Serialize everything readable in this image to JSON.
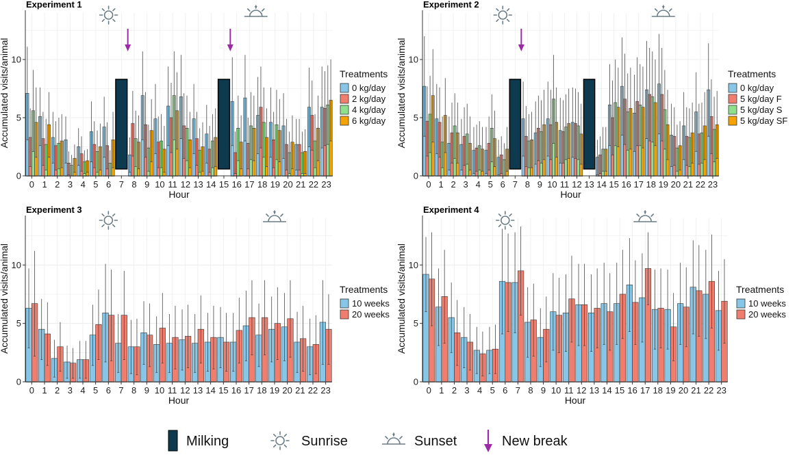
{
  "chart_data": [
    {
      "type": "bar",
      "title": "Experiment 1",
      "xlabel": "Hour",
      "ylabel": "Accumulated visits/animal",
      "ylim": [
        0,
        14
      ],
      "yticks": [
        0,
        5,
        10
      ],
      "categories": [
        "0",
        "1",
        "2",
        "3",
        "4",
        "5",
        "6",
        "7",
        "8",
        "9",
        "10",
        "11",
        "12",
        "13",
        "14",
        "15",
        "16",
        "17",
        "18",
        "19",
        "20",
        "21",
        "22",
        "23"
      ],
      "legend_title": "Treatments",
      "series": [
        {
          "name": "0 kg/day",
          "color": "#87c6e6",
          "values": [
            7.1,
            5.1,
            3.3,
            3.1,
            2.5,
            3.8,
            4.2,
            0,
            1.8,
            6.9,
            4.9,
            6.0,
            6.8,
            4.9,
            3.6,
            0,
            6.4,
            6.7,
            5.2,
            4.6,
            4.3,
            2.7,
            5.9,
            5.9
          ],
          "err": [
            4.0,
            2.5,
            2.2,
            2.0,
            1.6,
            2.6,
            2.6,
            0,
            1.5,
            3.8,
            3.0,
            3.4,
            3.6,
            3.0,
            2.5,
            0,
            3.8,
            3.7,
            3.3,
            3.0,
            2.8,
            2.2,
            3.4,
            3.5
          ]
        },
        {
          "name": "2 kg/day",
          "color": "#f07e6e",
          "values": [
            3.3,
            3.2,
            2.6,
            1.1,
            1.9,
            2.7,
            2.6,
            0,
            4.5,
            4.4,
            2.9,
            5.0,
            4.3,
            3.2,
            2.3,
            0,
            2.0,
            2.8,
            5.9,
            3.1,
            2.7,
            2.7,
            5.2,
            5.8
          ],
          "err": [
            2.5,
            2.3,
            2.1,
            1.0,
            1.5,
            2.0,
            2.0,
            0,
            2.8,
            2.8,
            2.2,
            3.0,
            2.8,
            2.3,
            2.0,
            0,
            1.8,
            2.2,
            3.5,
            2.4,
            2.2,
            2.2,
            3.0,
            3.2
          ]
        },
        {
          "name": "4 kg/day",
          "color": "#8ee08c",
          "values": [
            5.6,
            2.7,
            2.8,
            0.9,
            1.2,
            2.1,
            1.1,
            0,
            3.2,
            2.4,
            3.0,
            6.9,
            4.1,
            2.2,
            3.0,
            0,
            4.1,
            4.3,
            4.6,
            4.4,
            2.0,
            2.0,
            3.0,
            6.1
          ],
          "err": [
            3.5,
            2.2,
            2.2,
            0.9,
            1.0,
            1.8,
            1.1,
            0,
            2.4,
            2.0,
            2.3,
            3.8,
            2.8,
            1.9,
            2.3,
            0,
            2.8,
            2.9,
            3.0,
            3.0,
            1.8,
            1.8,
            2.3,
            3.4
          ]
        },
        {
          "name": "6 kg/day",
          "color": "#f5a300",
          "values": [
            4.6,
            4.4,
            3.0,
            1.5,
            1.3,
            2.5,
            3.1,
            0,
            2.9,
            3.9,
            2.3,
            5.6,
            3.1,
            2.5,
            3.3,
            0,
            2.9,
            4.1,
            3.3,
            3.9,
            2.9,
            2.1,
            4.1,
            6.5
          ],
          "err": [
            3.0,
            2.8,
            2.3,
            1.2,
            1.0,
            2.0,
            2.4,
            0,
            2.3,
            2.7,
            2.0,
            3.3,
            2.4,
            2.1,
            2.5,
            0,
            2.3,
            2.8,
            2.5,
            2.7,
            2.3,
            1.9,
            2.8,
            3.5
          ]
        }
      ],
      "milking_hours": [
        "7",
        "15"
      ],
      "milking_value": 8.3,
      "new_break_hours": [
        "7.5",
        "15.5"
      ],
      "sunrise_hour": "6",
      "sunset_hour": "17.5"
    },
    {
      "type": "bar",
      "title": "Experiment 2",
      "xlabel": "Hour",
      "ylabel": "Accumulated visits/animal",
      "ylim": [
        0,
        14
      ],
      "yticks": [
        0,
        5,
        10
      ],
      "categories": [
        "0",
        "1",
        "2",
        "3",
        "4",
        "5",
        "6",
        "7",
        "8",
        "9",
        "10",
        "11",
        "12",
        "13",
        "14",
        "15",
        "16",
        "17",
        "18",
        "19",
        "20",
        "21",
        "22",
        "23"
      ],
      "legend_title": "Treatments",
      "series": [
        {
          "name": "0 kg/day",
          "color": "#87c6e6",
          "values": [
            7.7,
            4.9,
            2.8,
            2.7,
            2.2,
            2.2,
            1.6,
            0,
            4.9,
            3.7,
            4.9,
            3.9,
            4.6,
            0,
            1.6,
            6.1,
            7.7,
            5.4,
            7.4,
            7.9,
            3.5,
            4.3,
            5.5,
            7.4
          ],
          "err": [
            4.3,
            3.0,
            2.3,
            2.2,
            2.0,
            2.0,
            1.5,
            0,
            3.2,
            2.7,
            3.2,
            2.8,
            3.0,
            0,
            1.5,
            3.5,
            4.2,
            3.3,
            4.2,
            4.3,
            2.7,
            2.9,
            3.4,
            4.0
          ]
        },
        {
          "name": "5 kg/day F",
          "color": "#f07e6e",
          "values": [
            4.7,
            4.6,
            3.7,
            3.4,
            2.4,
            2.8,
            1.8,
            0,
            3.4,
            4.1,
            4.4,
            3.8,
            4.5,
            0,
            1.8,
            5.0,
            6.6,
            6.4,
            7.0,
            7.0,
            3.4,
            3.4,
            3.6,
            5.1
          ],
          "err": [
            3.0,
            3.0,
            2.6,
            2.5,
            2.0,
            2.3,
            1.6,
            0,
            2.6,
            2.8,
            3.0,
            2.7,
            3.0,
            0,
            1.6,
            3.2,
            3.9,
            3.8,
            4.0,
            4.0,
            2.5,
            2.5,
            2.6,
            3.2
          ]
        },
        {
          "name": "5 kg/day S",
          "color": "#8ee08c",
          "values": [
            5.3,
            2.9,
            4.3,
            3.6,
            2.6,
            4.1,
            1.4,
            0,
            3.0,
            3.8,
            6.6,
            4.2,
            4.3,
            0,
            2.3,
            6.3,
            5.5,
            6.1,
            6.8,
            5.7,
            2.4,
            3.3,
            3.7,
            4.0
          ],
          "err": [
            3.3,
            2.2,
            2.8,
            2.6,
            2.1,
            2.9,
            1.4,
            0,
            2.3,
            2.7,
            3.8,
            2.8,
            2.9,
            0,
            1.9,
            3.7,
            3.3,
            3.5,
            3.9,
            3.4,
            2.0,
            2.5,
            2.6,
            2.8
          ]
        },
        {
          "name": "5 kg/day SF",
          "color": "#f5a300",
          "values": [
            6.9,
            5.2,
            3.7,
            2.8,
            2.3,
            3.2,
            2.3,
            0,
            3.1,
            4.4,
            4.6,
            4.5,
            3.6,
            0,
            2.3,
            5.9,
            5.8,
            5.9,
            6.3,
            4.4,
            2.6,
            3.7,
            4.3,
            4.4
          ],
          "err": [
            4.0,
            3.2,
            2.6,
            2.3,
            1.9,
            2.4,
            1.9,
            0,
            2.4,
            3.0,
            3.0,
            3.0,
            2.6,
            0,
            1.9,
            3.4,
            3.5,
            3.5,
            3.7,
            3.0,
            2.1,
            2.6,
            2.9,
            2.9
          ]
        }
      ],
      "milking_hours": [
        "7",
        "13"
      ],
      "milking_value": 8.3,
      "new_break_hours": [
        "7.5"
      ],
      "sunrise_hour": "6",
      "sunset_hour": "19"
    },
    {
      "type": "bar",
      "title": "Experiment 3",
      "xlabel": "Hour",
      "ylabel": "Accumulated visits/animal",
      "ylim": [
        0,
        14
      ],
      "yticks": [
        0,
        5,
        10
      ],
      "categories": [
        "0",
        "1",
        "2",
        "3",
        "4",
        "5",
        "6",
        "7",
        "8",
        "9",
        "10",
        "11",
        "12",
        "13",
        "14",
        "15",
        "16",
        "17",
        "18",
        "19",
        "20",
        "21",
        "22",
        "23"
      ],
      "legend_title": "Treatments",
      "series": [
        {
          "name": "10 weeks",
          "color": "#87c6e6",
          "values": [
            6.3,
            4.5,
            2.0,
            1.7,
            1.9,
            4.0,
            5.9,
            3.3,
            3.0,
            4.2,
            3.2,
            3.3,
            3.6,
            3.3,
            3.4,
            3.8,
            3.4,
            4.8,
            4.0,
            4.5,
            4.7,
            3.4,
            3.0,
            5.1
          ],
          "err": [
            3.4,
            2.6,
            1.6,
            1.4,
            1.6,
            2.6,
            4.2,
            2.5,
            2.3,
            2.7,
            2.4,
            2.5,
            2.6,
            2.5,
            2.5,
            2.6,
            2.5,
            3.0,
            2.7,
            2.8,
            2.9,
            2.6,
            2.4,
            3.6
          ]
        },
        {
          "name": "20 weeks",
          "color": "#f07e6e",
          "values": [
            6.7,
            4.1,
            3.0,
            1.6,
            1.9,
            4.9,
            5.7,
            5.7,
            3.0,
            4.0,
            4.6,
            3.8,
            3.9,
            4.5,
            3.8,
            3.4,
            4.4,
            5.5,
            5.5,
            5.0,
            5.4,
            3.7,
            3.2,
            4.5
          ],
          "err": [
            4.5,
            2.7,
            2.1,
            1.3,
            1.6,
            3.0,
            3.9,
            3.8,
            2.4,
            2.7,
            3.0,
            2.7,
            2.7,
            2.9,
            2.7,
            2.5,
            2.8,
            3.2,
            3.2,
            3.1,
            3.3,
            2.8,
            2.5,
            3.0
          ]
        }
      ],
      "sunrise_hour": "6",
      "sunset_hour": "19"
    },
    {
      "type": "bar",
      "title": "Experiment 4",
      "xlabel": "Hour",
      "ylabel": "Accumulated visits/animal",
      "ylim": [
        0,
        14
      ],
      "yticks": [
        0,
        5,
        10
      ],
      "categories": [
        "0",
        "1",
        "2",
        "3",
        "4",
        "5",
        "6",
        "7",
        "8",
        "9",
        "10",
        "11",
        "12",
        "13",
        "14",
        "15",
        "16",
        "17",
        "18",
        "19",
        "20",
        "21",
        "22",
        "23"
      ],
      "legend_title": "Treatments",
      "series": [
        {
          "name": "10 weeks",
          "color": "#87c6e6",
          "values": [
            9.2,
            6.4,
            5.5,
            3.8,
            2.7,
            2.7,
            8.6,
            8.5,
            5.1,
            3.8,
            6.0,
            5.9,
            6.6,
            5.9,
            6.7,
            6.7,
            8.3,
            7.2,
            6.2,
            6.2,
            6.7,
            8.1,
            7.5,
            6.1
          ],
          "err": [
            3.2,
            3.3,
            3.0,
            2.6,
            2.0,
            2.0,
            4.5,
            4.3,
            3.0,
            2.5,
            3.3,
            3.3,
            3.5,
            3.3,
            3.5,
            3.5,
            4.0,
            3.8,
            3.4,
            3.4,
            3.5,
            4.0,
            3.8,
            3.4
          ]
        },
        {
          "name": "20 weeks",
          "color": "#f07e6e",
          "values": [
            8.8,
            7.3,
            4.2,
            3.4,
            2.4,
            2.8,
            8.5,
            9.5,
            5.3,
            4.5,
            5.7,
            7.1,
            6.6,
            6.3,
            6.0,
            7.5,
            6.8,
            9.7,
            6.3,
            4.7,
            6.4,
            7.8,
            8.6,
            6.9
          ],
          "err": [
            4.0,
            4.0,
            2.8,
            2.4,
            1.9,
            2.1,
            4.2,
            3.8,
            3.1,
            2.8,
            3.2,
            3.7,
            3.5,
            3.4,
            3.3,
            3.8,
            3.6,
            3.1,
            3.4,
            2.9,
            3.4,
            3.9,
            4.0,
            3.6
          ]
        }
      ],
      "sunrise_hour": "6",
      "sunset_hour": "17"
    }
  ],
  "bottom_legend": {
    "milking": "Milking",
    "sunrise": "Sunrise",
    "sunset": "Sunset",
    "new_break": "New break"
  },
  "colors": {
    "milking_fill": "#0e3a4f",
    "arrow": "#9b2aa4",
    "icon": "#6b7c85",
    "axis": "#333333",
    "grid": "#ececec"
  }
}
